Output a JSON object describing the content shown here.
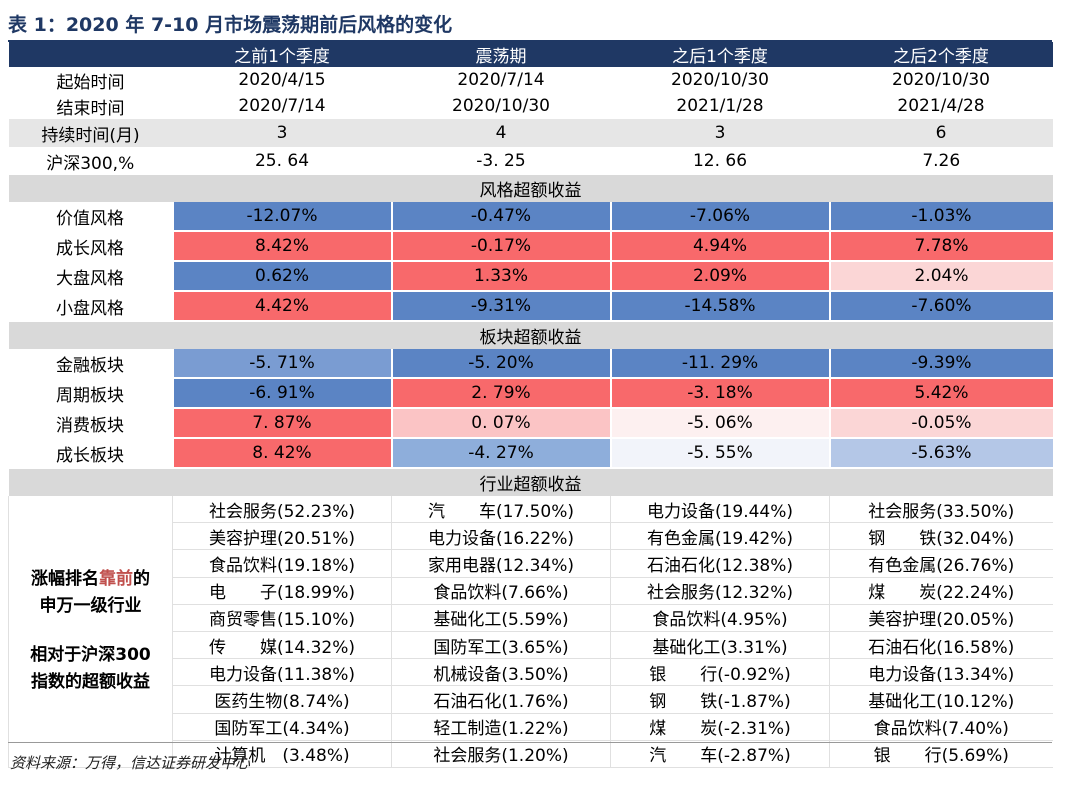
{
  "title": "表 1：2020 年 7-10 月市场震荡期前后风格的变化",
  "columns": [
    "之前1个季度",
    "震荡期",
    "之后1个季度",
    "之后2个季度"
  ],
  "rows": {
    "start": {
      "label": "起始时间",
      "values": [
        "2020/4/15",
        "2020/7/14",
        "2020/10/30",
        "2020/10/30"
      ]
    },
    "end": {
      "label": "结束时间",
      "values": [
        "2020/7/14",
        "2020/10/30",
        "2021/1/28",
        "2021/4/28"
      ]
    },
    "duration": {
      "label": "持续时间(月)",
      "values": [
        "3",
        "4",
        "3",
        "6"
      ]
    },
    "hs300": {
      "label": "沪深300,%",
      "values": [
        "25. 64",
        "-3. 25",
        "12. 66",
        "7.26"
      ]
    }
  },
  "style_section": {
    "title": "风格超额收益",
    "rows": [
      {
        "label": "价值风格",
        "values": [
          "-12.07%",
          "-0.47%",
          "-7.06%",
          "-1.03%"
        ],
        "colors": [
          "#5b84c4",
          "#5b84c4",
          "#5b84c4",
          "#5b84c4"
        ]
      },
      {
        "label": "成长风格",
        "values": [
          "8.42%",
          "-0.17%",
          "4.94%",
          "7.78%"
        ],
        "colors": [
          "#f8696b",
          "#f8696b",
          "#f8696b",
          "#f8696b"
        ]
      },
      {
        "label": "大盘风格",
        "values": [
          "0.62%",
          "1.33%",
          "2.09%",
          "2.04%"
        ],
        "colors": [
          "#5b84c4",
          "#f8696b",
          "#f8696b",
          "#fbd6d6"
        ]
      },
      {
        "label": "小盘风格",
        "values": [
          "4.42%",
          "-9.31%",
          "-14.58%",
          "-7.60%"
        ],
        "colors": [
          "#f8696b",
          "#5b84c4",
          "#5b84c4",
          "#5b84c4"
        ]
      }
    ]
  },
  "sector_section": {
    "title": "板块超额收益",
    "rows": [
      {
        "label": "金融板块",
        "values": [
          "-5. 71%",
          "-5. 20%",
          "-11. 29%",
          "-9.39%"
        ],
        "colors": [
          "#7a9cd2",
          "#5b84c4",
          "#5b84c4",
          "#5b84c4"
        ]
      },
      {
        "label": "周期板块",
        "values": [
          "-6. 91%",
          "2. 79%",
          "-3. 18%",
          "5.42%"
        ],
        "colors": [
          "#5b84c4",
          "#f8696b",
          "#f8696b",
          "#f8696b"
        ]
      },
      {
        "label": "消费板块",
        "values": [
          "7. 87%",
          "0. 07%",
          "-5. 06%",
          "-0.05%"
        ],
        "colors": [
          "#f8696b",
          "#fbc4c5",
          "#fdf0f0",
          "#fbd6d6"
        ]
      },
      {
        "label": "成长板块",
        "values": [
          "8. 42%",
          "-4. 27%",
          "-5. 55%",
          "-5.63%"
        ],
        "colors": [
          "#f8696b",
          "#8eaedb",
          "#f2f4fa",
          "#b4c7e7"
        ]
      }
    ]
  },
  "industry_section": {
    "title": "行业超额收益",
    "side_label_1a": "涨幅排名",
    "side_label_1b": "靠前",
    "side_label_1c": "的",
    "side_label_2": "申万一级行业",
    "side_label_3": "相对于沪深300",
    "side_label_4": "指数的超额收益",
    "rows": [
      [
        "社会服务(52.23%)",
        "汽　　车(17.50%)",
        "电力设备(19.44%)",
        "社会服务(33.50%)"
      ],
      [
        "美容护理(20.51%)",
        "电力设备(16.22%)",
        "有色金属(19.42%)",
        "钢　　铁(32.04%)"
      ],
      [
        "食品饮料(19.18%)",
        "家用电器(12.34%)",
        "石油石化(12.38%)",
        "有色金属(26.76%)"
      ],
      [
        "电　　子(18.99%)",
        "食品饮料(7.66%)",
        "社会服务(12.32%)",
        "煤　　炭(22.24%)"
      ],
      [
        "商贸零售(15.10%)",
        "基础化工(5.59%)",
        "食品饮料(4.95%)",
        "美容护理(20.05%)"
      ],
      [
        "传　　媒(14.32%)",
        "国防军工(3.65%)",
        "基础化工(3.31%)",
        "石油石化(16.58%)"
      ],
      [
        "电力设备(11.38%)",
        "机械设备(3.50%)",
        "银　　行(-0.92%)",
        "电力设备(13.34%)"
      ],
      [
        "医药生物(8.74%)",
        "石油石化(1.76%)",
        "钢　　铁(-1.87%)",
        "基础化工(10.12%)"
      ],
      [
        "国防军工(4.34%)",
        "轻工制造(1.22%)",
        "煤　　炭(-2.31%)",
        "食品饮料(7.40%)"
      ],
      [
        "计算机　(3.48%)",
        "社会服务(1.20%)",
        "汽　　车(-2.87%)",
        "银　　行(5.69%)"
      ]
    ]
  },
  "source": "资料来源：万得，信达证券研发中心",
  "colors": {
    "header": "#1f3864",
    "blue": "#5b84c4",
    "red": "#f8696b",
    "highlight": "#c0504d"
  }
}
